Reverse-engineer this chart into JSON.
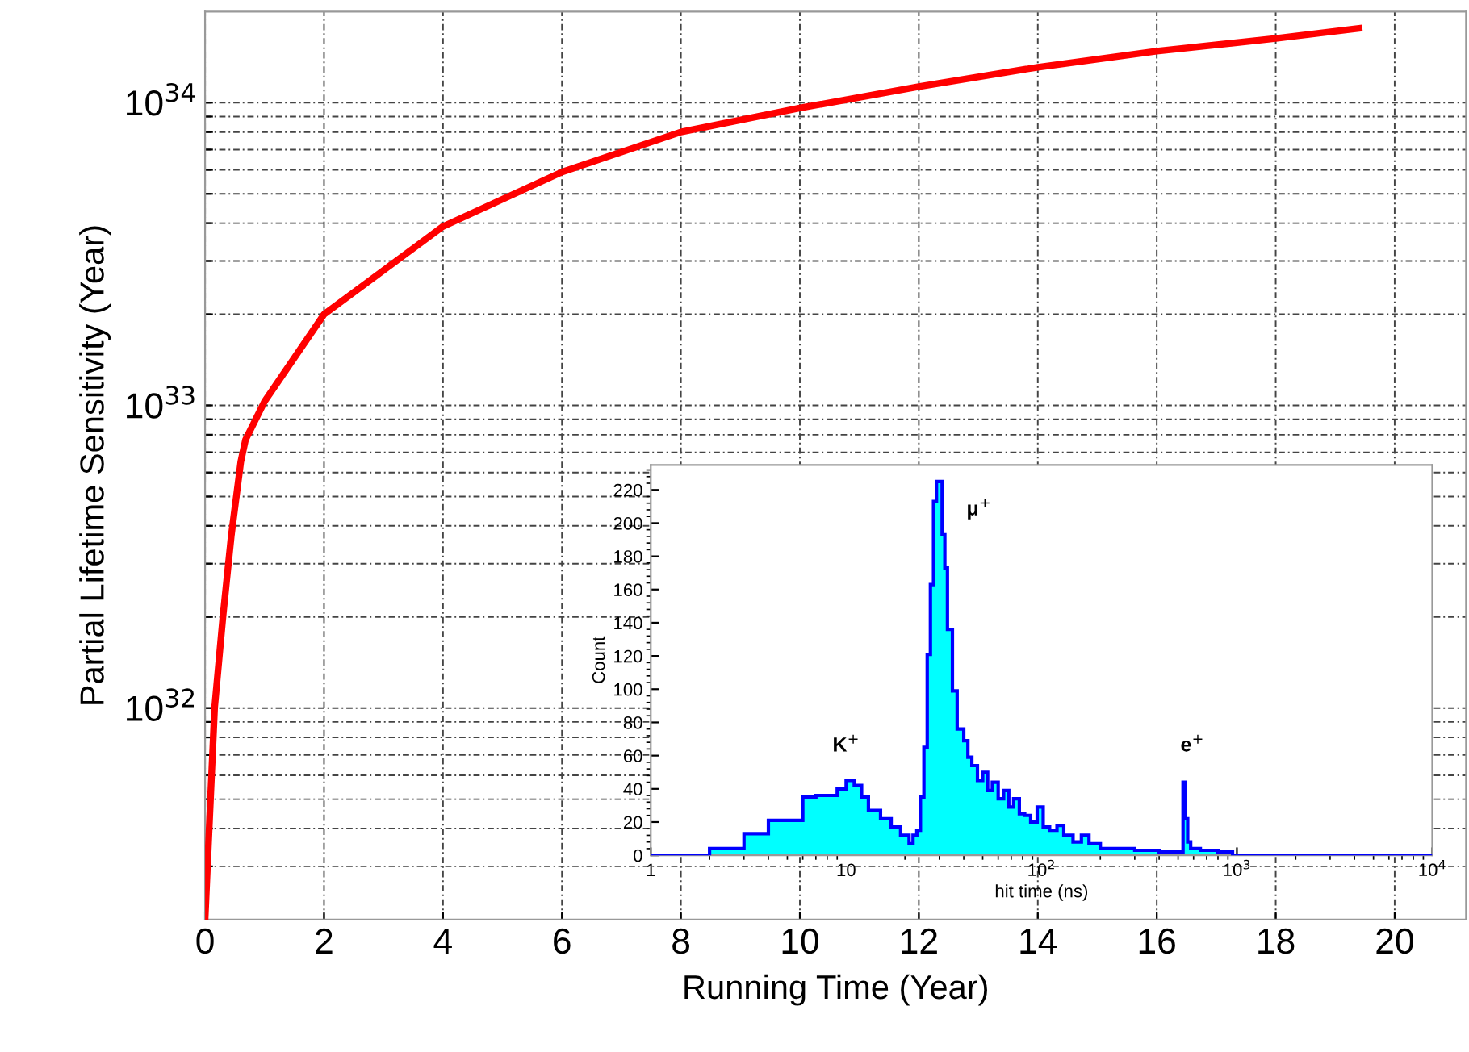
{
  "chart_data": [
    {
      "type": "line",
      "xlabel": "Running Time (Year)",
      "ylabel": "Partial Lifetime Sensitivity (Year)",
      "log": "y",
      "grid": true,
      "marker": "none",
      "line_style": "solid",
      "xlim": [
        0,
        21.2
      ],
      "ylim": [
        2e+31,
        2e+34
      ],
      "xticks": [
        0,
        2,
        4,
        6,
        8,
        10,
        12,
        14,
        16,
        18,
        20
      ],
      "yticks": [
        {
          "value": 3e+31,
          "label": null
        },
        {
          "value": 4e+31,
          "label": null
        },
        {
          "value": 5e+31,
          "label": null
        },
        {
          "value": 6e+31,
          "label": null
        },
        {
          "value": 7e+31,
          "label": null
        },
        {
          "value": 8e+31,
          "label": null
        },
        {
          "value": 9e+31,
          "label": null
        },
        {
          "value": 1e+32,
          "label": "10$^{32}$"
        },
        {
          "value": 2e+32,
          "label": null
        },
        {
          "value": 3e+32,
          "label": null
        },
        {
          "value": 4e+32,
          "label": null
        },
        {
          "value": 5e+32,
          "label": null
        },
        {
          "value": 6e+32,
          "label": null
        },
        {
          "value": 7e+32,
          "label": null
        },
        {
          "value": 8e+32,
          "label": null
        },
        {
          "value": 9e+32,
          "label": null
        },
        {
          "value": 1e+33,
          "label": "10$^{33}$"
        },
        {
          "value": 2e+33,
          "label": null
        },
        {
          "value": 3e+33,
          "label": null
        },
        {
          "value": 4e+33,
          "label": null
        },
        {
          "value": 5e+33,
          "label": null
        },
        {
          "value": 6e+33,
          "label": null
        },
        {
          "value": 7e+33,
          "label": null
        },
        {
          "value": 8e+33,
          "label": null
        },
        {
          "value": 9e+33,
          "label": null
        },
        {
          "value": 1e+34,
          "label": "10$^{34}$"
        }
      ],
      "series": [
        {
          "color": "#ff0000",
          "x": [
            0,
            0.16,
            0.3,
            0.44,
            0.6,
            0.68,
            1,
            2,
            4,
            6,
            8,
            10,
            12,
            14,
            16,
            18,
            19.4
          ],
          "values": [
            2e+31,
            1e+32,
            2e+32,
            3.7e+32,
            6.5e+32,
            7.7e+32,
            1.03e+33,
            2e+33,
            3.9e+33,
            5.9e+33,
            8e+33,
            9.6e+33,
            1.13e+34,
            1.31e+34,
            1.48e+34,
            1.63e+34,
            1.76e+34
          ]
        }
      ]
    },
    {
      "type": "histogram",
      "xlabel": "hit time (ns)",
      "ylabel": "Count",
      "log": "x",
      "grid": false,
      "xlim": [
        1,
        10000
      ],
      "ylim": [
        0,
        235
      ],
      "xticks": [
        1,
        10,
        {
          "value": 100,
          "label": "10$^{2}$"
        },
        {
          "value": 1000,
          "label": "10$^{3}$"
        },
        {
          "value": 10000,
          "label": "10$^{4}$"
        }
      ],
      "yticks": [
        0,
        20,
        40,
        60,
        80,
        100,
        120,
        140,
        160,
        180,
        200,
        220
      ],
      "color": "#00ffff",
      "bins": [
        1,
        2,
        3,
        4,
        6,
        7,
        9,
        10,
        11,
        12,
        13,
        15,
        17,
        19,
        21,
        22,
        23,
        24,
        25,
        26,
        27,
        28,
        29,
        30,
        31,
        32,
        33,
        35,
        37,
        40,
        42,
        44,
        47,
        50,
        53,
        56,
        60,
        64,
        68,
        72,
        77,
        82,
        88,
        95,
        102,
        110,
        120,
        130,
        145,
        160,
        175,
        200,
        250,
        300,
        400,
        530,
        545,
        560,
        580,
        650,
        800,
        950,
        10000
      ],
      "values": [
        0,
        4,
        13,
        21,
        35,
        36,
        40,
        45,
        42,
        35,
        27,
        22,
        17,
        12,
        7,
        12,
        15,
        35,
        65,
        121,
        163,
        213,
        225,
        225,
        193,
        173,
        136,
        99,
        76,
        69,
        59,
        54,
        45,
        50,
        39,
        44,
        34,
        39,
        29,
        34,
        25,
        24,
        20,
        29,
        17,
        15,
        18,
        12,
        8,
        12,
        7,
        4,
        4,
        3,
        2,
        44,
        22,
        8,
        4,
        3,
        2,
        0
      ],
      "annotations": [
        "K$^{+}$",
        "μ$^{+}$",
        "e$^{+}$"
      ]
    }
  ]
}
